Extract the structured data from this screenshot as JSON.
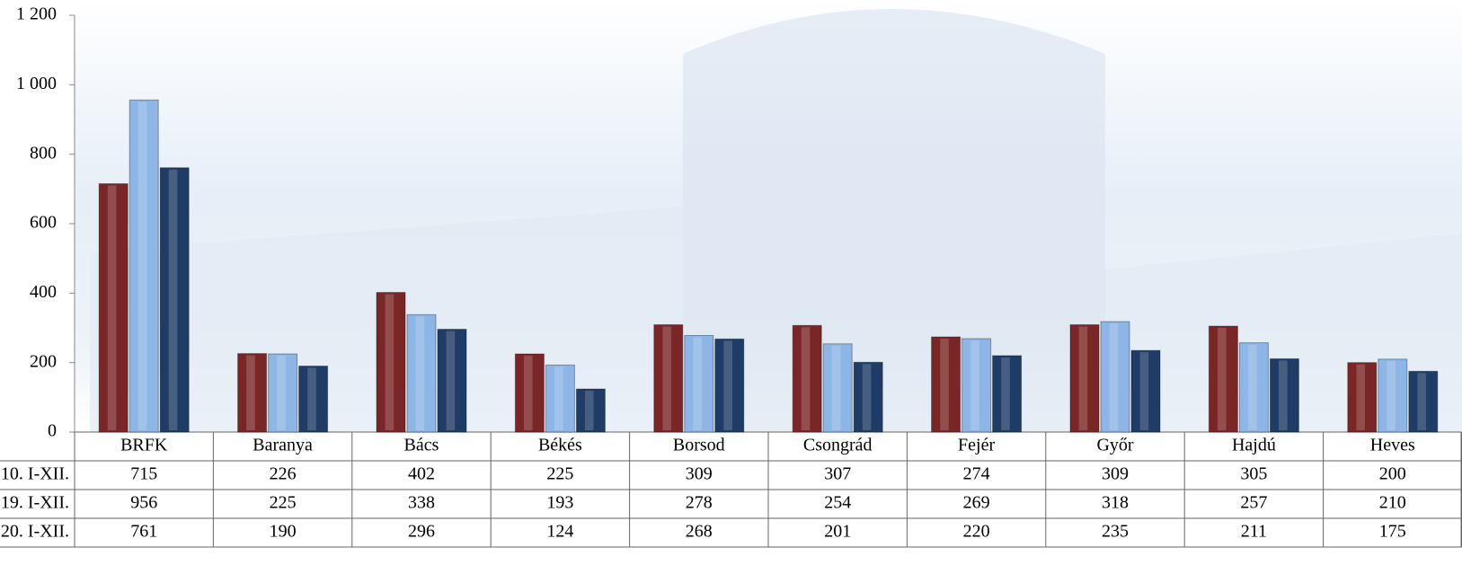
{
  "chart_data": {
    "type": "bar",
    "categories": [
      "BRFK",
      "Baranya",
      "Bács",
      "Békés",
      "Borsod",
      "Csongrád",
      "Fejér",
      "Győr",
      "Hajdú",
      "Heves"
    ],
    "series": [
      {
        "name": "10. I-XII.",
        "color": "#7a2626",
        "values": [
          715,
          226,
          402,
          225,
          309,
          307,
          274,
          309,
          305,
          200
        ]
      },
      {
        "name": "19. I-XII.",
        "color": "#8db6e6",
        "values": [
          956,
          225,
          338,
          193,
          278,
          254,
          269,
          318,
          257,
          210
        ]
      },
      {
        "name": "20. I-XII.",
        "color": "#1e3c66",
        "values": [
          761,
          190,
          296,
          124,
          268,
          201,
          220,
          235,
          211,
          175
        ]
      }
    ],
    "ylim": [
      0,
      1200
    ],
    "yticks": [
      0,
      200,
      400,
      600,
      800,
      {
        "value": 1000,
        "label": "1 000"
      },
      {
        "value": 1200,
        "label": "1 200"
      }
    ],
    "grid": false
  }
}
